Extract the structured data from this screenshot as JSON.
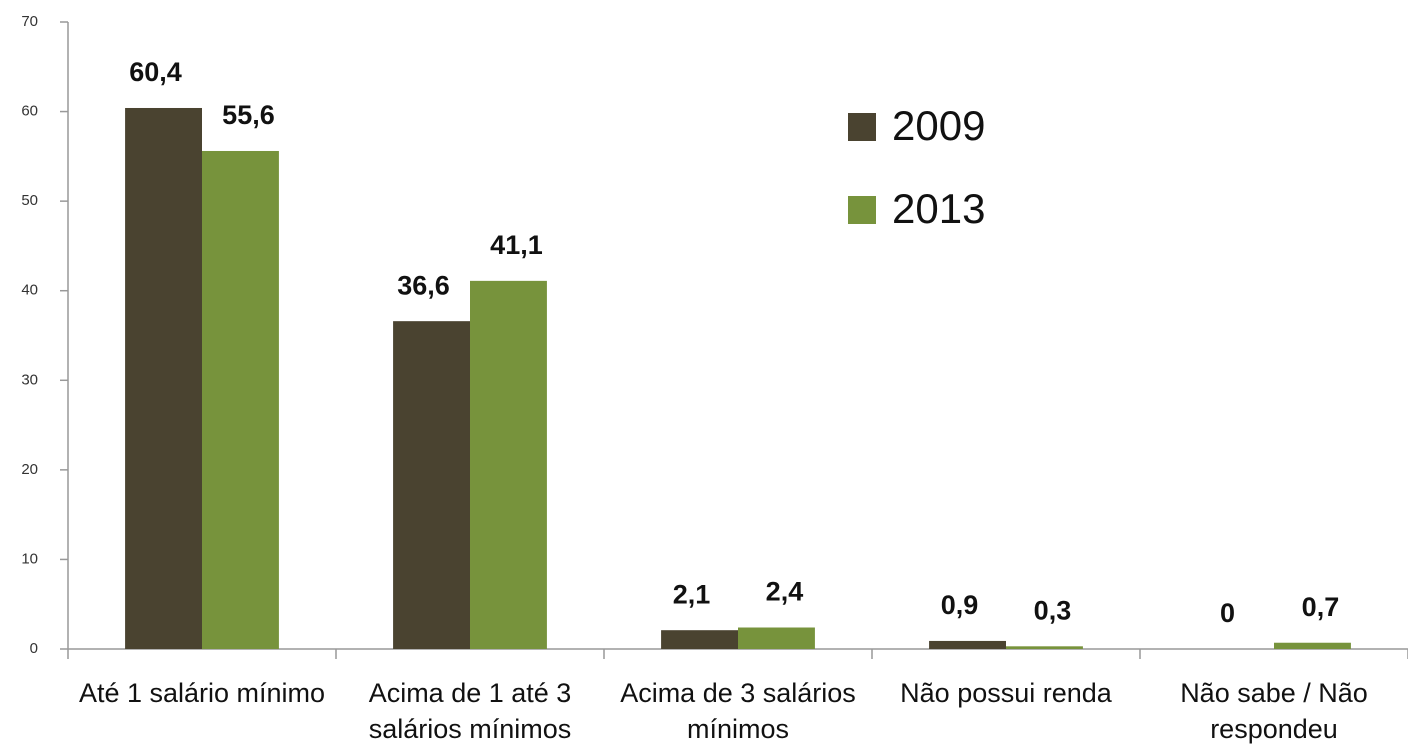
{
  "chart_data": {
    "type": "bar",
    "categories": [
      "Até 1 salário mínimo",
      "Acima de 1 até 3 salários mínimos",
      "Acima de 3 salários mínimos",
      "Não possui renda",
      "Não sabe / Não respondeu"
    ],
    "series": [
      {
        "name": "2009",
        "color": "#4a4330",
        "values": [
          60.4,
          36.6,
          2.1,
          0.9,
          0
        ],
        "value_labels": [
          "60,4",
          "36,6",
          "2,1",
          "0,9",
          "0"
        ]
      },
      {
        "name": "2013",
        "color": "#77933c",
        "values": [
          55.6,
          41.1,
          2.4,
          0.3,
          0.7
        ],
        "value_labels": [
          "55,6",
          "41,1",
          "2,4",
          "0,3",
          "0,7"
        ]
      }
    ],
    "ylim": [
      0,
      70
    ],
    "yticks": [
      0,
      10,
      20,
      30,
      40,
      50,
      60,
      70
    ],
    "grid": false,
    "legend": "upper right"
  }
}
